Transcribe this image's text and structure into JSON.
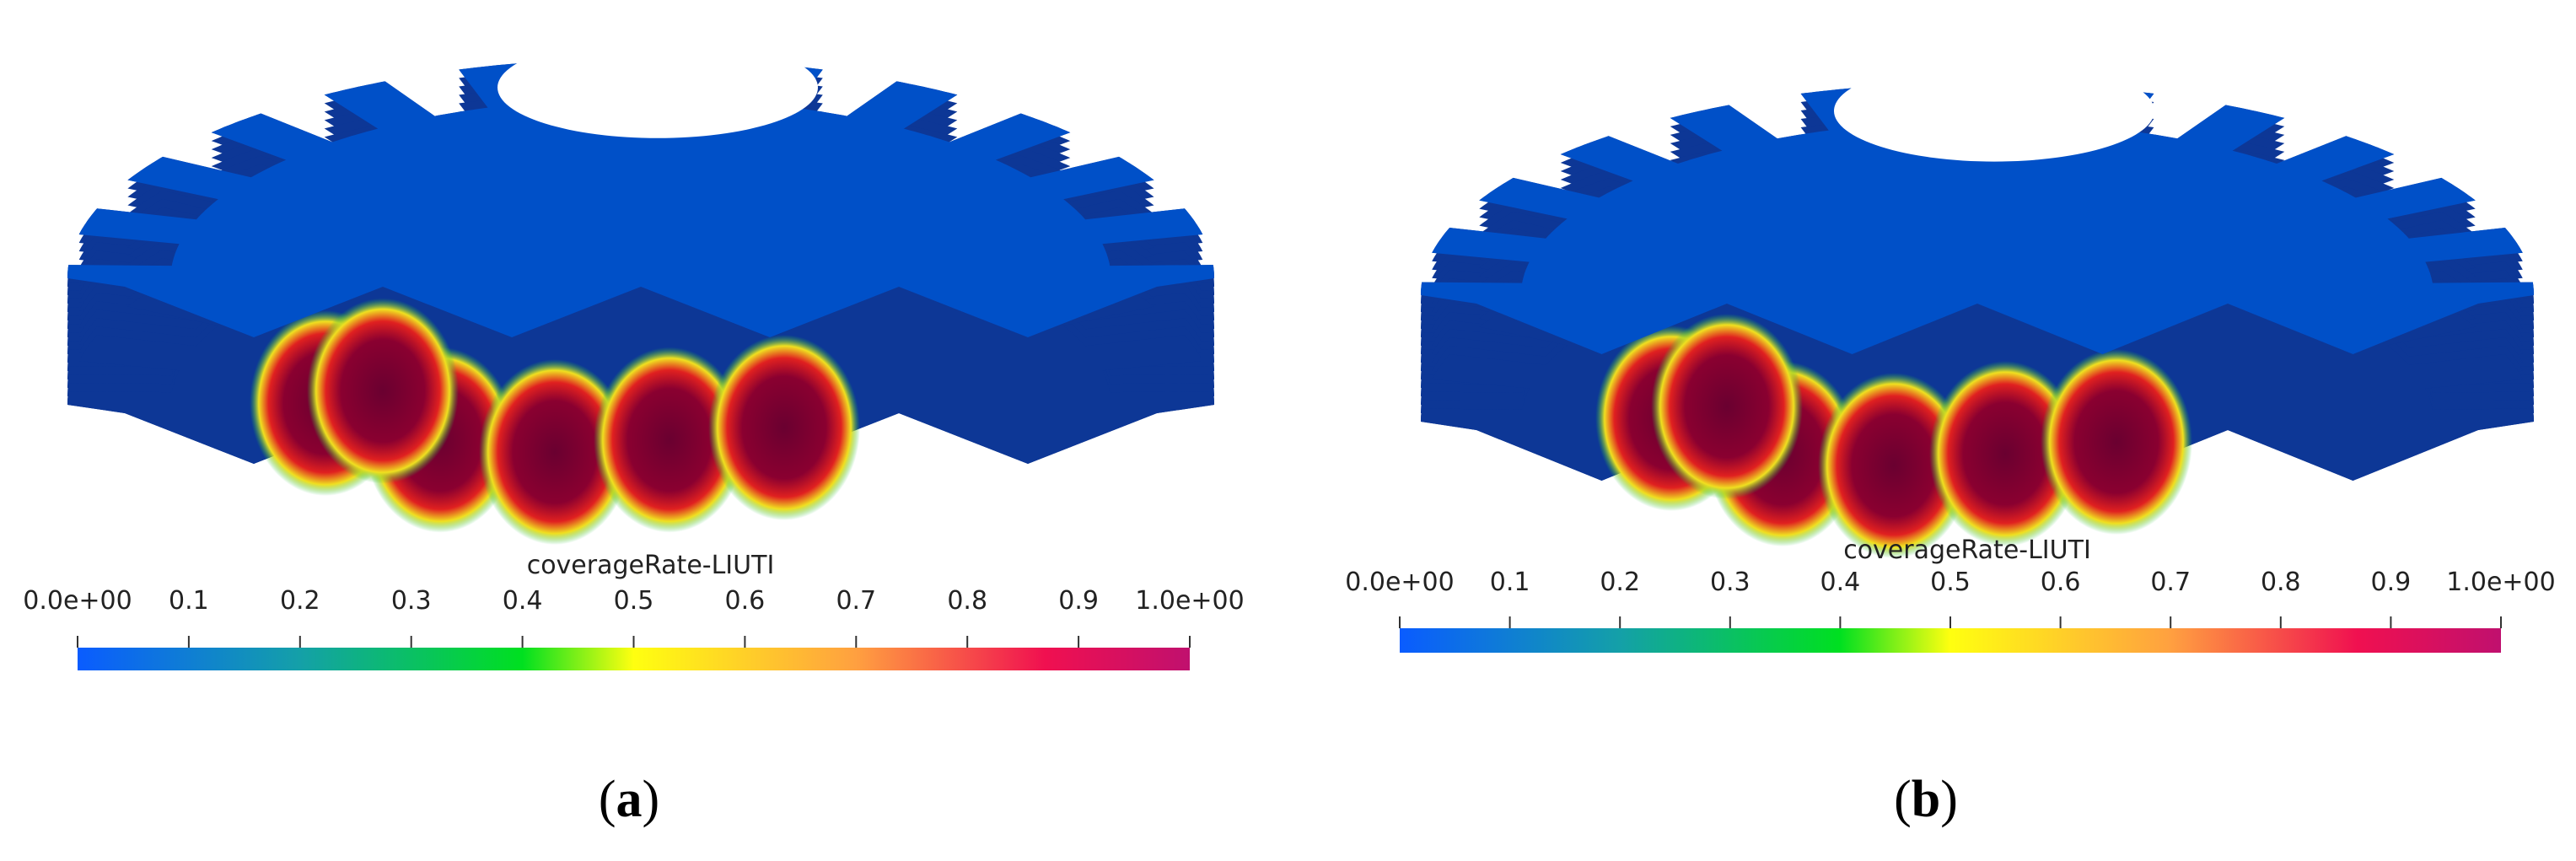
{
  "panels": [
    {
      "colorbar": {
        "title": "coverageRate-LIUTI",
        "ticks": [
          "0.0e+00",
          "0.1",
          "0.2",
          "0.3",
          "0.4",
          "0.5",
          "0.6",
          "0.7",
          "0.8",
          "0.9",
          "1.0e+00"
        ]
      },
      "caption": {
        "open": "(",
        "letter": "a",
        "close": ")"
      }
    },
    {
      "colorbar": {
        "title": "coverageRate-LIUTI",
        "ticks": [
          "0.0e+00",
          "0.1",
          "0.2",
          "0.3",
          "0.4",
          "0.5",
          "0.6",
          "0.7",
          "0.8",
          "0.9",
          "1.0e+00"
        ]
      },
      "caption": {
        "open": "(",
        "letter": "b",
        "close": ")"
      }
    }
  ]
}
